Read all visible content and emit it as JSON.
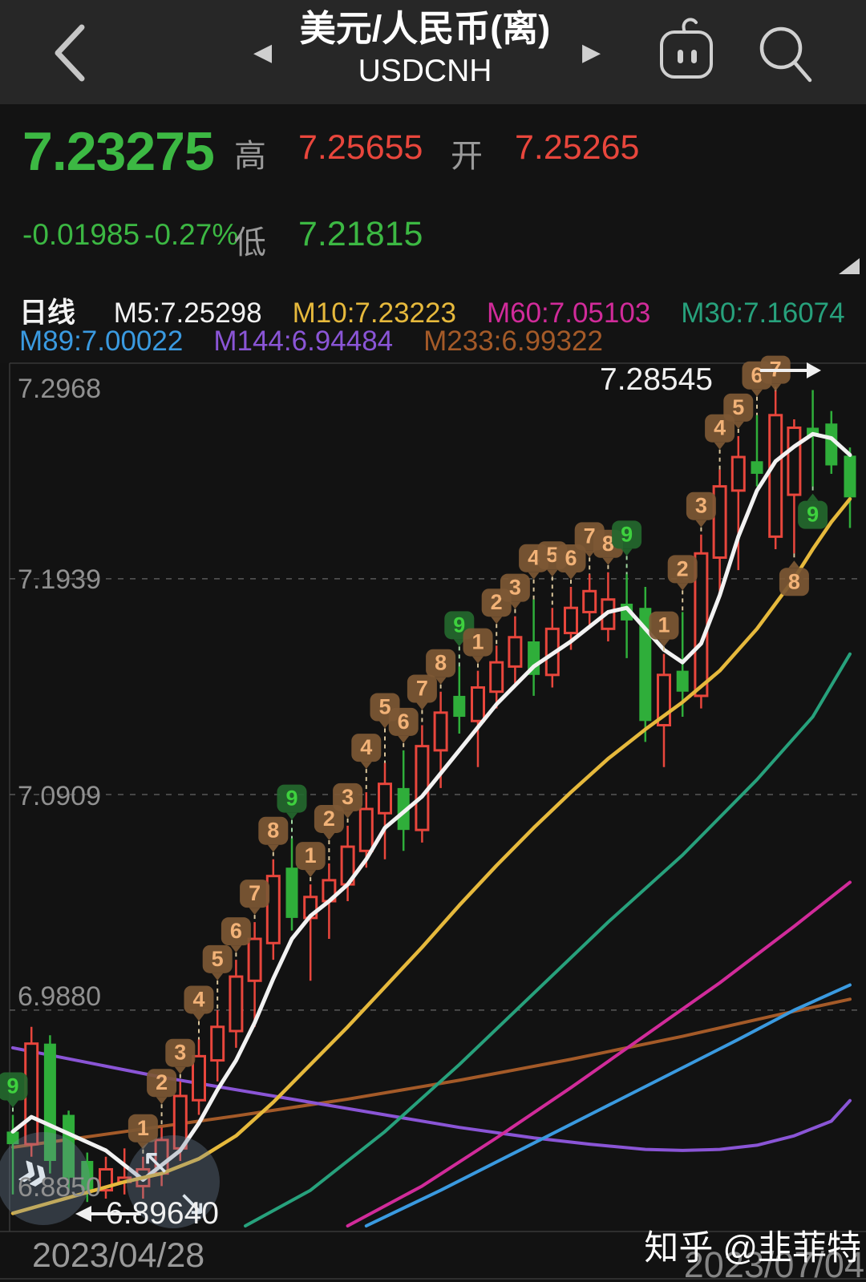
{
  "header": {
    "title": "美元/人民币(离)",
    "subtitle": "USDCNH"
  },
  "quote": {
    "last": "7.23275",
    "change": "-0.01985",
    "change_pct": "-0.27%",
    "high_label": "高",
    "high": "7.25655",
    "open_label": "开",
    "open": "7.25265",
    "low_label": "低",
    "low": "7.21815"
  },
  "legend": {
    "period": "日线",
    "rows": [
      [
        {
          "t": "M5:7.25298",
          "c": "#f2f2f2"
        },
        {
          "t": "M10:7.23223",
          "c": "#e6b93c"
        },
        {
          "t": "M60:7.05103",
          "c": "#d12b9a"
        },
        {
          "t": "M30:7.16074",
          "c": "#27a17c"
        }
      ],
      [
        {
          "t": "M89:7.00022",
          "c": "#3a9ae0"
        },
        {
          "t": "M144:6.94484",
          "c": "#8a55d6"
        },
        {
          "t": "M233:6.99322",
          "c": "#a45a28"
        }
      ]
    ]
  },
  "footer": {
    "date_left": "2023/04/28",
    "date_right": "2023/07/04",
    "watermark": "知乎 @韭菲特"
  },
  "chart_data": {
    "type": "candlestick",
    "symbol": "USDCNH",
    "period": "daily",
    "title": "USDCNH 日线",
    "y_ticks": [
      "7.2968",
      "7.1939",
      "7.0909",
      "6.9880",
      "6.8850"
    ],
    "x_range": [
      "2023/04/28",
      "2023/07/04"
    ],
    "high_annotation": "7.28545",
    "low_annotation": "6.89640",
    "up_color": "#e8463c",
    "down_color": "#2fae3a",
    "grid": "dashed-horizontal",
    "candles": [
      [
        6.93,
        6.938,
        6.9,
        6.924,
        "9",
        "green",
        0
      ],
      [
        6.924,
        6.98,
        6.918,
        6.972
      ],
      [
        6.972,
        6.976,
        6.91,
        6.916
      ],
      [
        6.938,
        6.94,
        6.902,
        6.908
      ],
      [
        6.916,
        6.92,
        6.8964,
        6.902
      ],
      [
        6.902,
        6.918,
        6.898,
        6.912
      ],
      [
        6.906,
        6.922,
        6.9,
        6.908
      ],
      [
        6.904,
        6.918,
        6.898,
        6.912,
        "1",
        "brown",
        0
      ],
      [
        6.91,
        6.932,
        6.904,
        6.926,
        "2",
        "brown",
        20
      ],
      [
        6.922,
        6.954,
        6.916,
        6.947,
        "3",
        "brown",
        0
      ],
      [
        6.945,
        6.974,
        6.938,
        6.966,
        "4",
        "brown",
        14
      ],
      [
        6.964,
        6.988,
        6.954,
        6.98,
        "5",
        "brown",
        28
      ],
      [
        6.978,
        7.012,
        6.97,
        7.004,
        "6",
        "brown",
        0
      ],
      [
        7.002,
        7.03,
        6.98,
        7.022,
        "7",
        "brown",
        0
      ],
      [
        7.02,
        7.06,
        7.012,
        7.052,
        "8",
        "brown",
        0
      ],
      [
        7.056,
        7.07,
        7.026,
        7.032,
        "9",
        "green",
        14
      ],
      [
        7.032,
        7.048,
        7.002,
        7.042,
        "1",
        "brown",
        0
      ],
      [
        7.04,
        7.058,
        7.022,
        7.05,
        "2",
        "brown",
        20
      ],
      [
        7.048,
        7.076,
        7.04,
        7.066,
        "3",
        "brown",
        0
      ],
      [
        7.064,
        7.092,
        7.056,
        7.084,
        "4",
        "brown",
        20
      ],
      [
        7.082,
        7.106,
        7.06,
        7.096,
        "5",
        "brown",
        34
      ],
      [
        7.094,
        7.112,
        7.064,
        7.074,
        "6",
        "brown",
        0
      ],
      [
        7.074,
        7.124,
        7.068,
        7.114,
        "7",
        "brown",
        10
      ],
      [
        7.112,
        7.14,
        7.094,
        7.13,
        "8",
        "brown",
        0
      ],
      [
        7.138,
        7.152,
        7.12,
        7.128,
        "9",
        "green",
        16
      ],
      [
        7.126,
        7.15,
        7.104,
        7.142,
        "1",
        "brown",
        0
      ],
      [
        7.14,
        7.162,
        7.132,
        7.154,
        "2",
        "brown",
        18
      ],
      [
        7.152,
        7.176,
        7.144,
        7.166,
        "3",
        "brown",
        0
      ],
      [
        7.164,
        7.184,
        7.138,
        7.148,
        "4",
        "brown",
        16
      ],
      [
        7.148,
        7.18,
        7.142,
        7.17,
        "5",
        "brown",
        30
      ],
      [
        7.168,
        7.19,
        7.16,
        7.18,
        "6",
        "brown",
        0
      ],
      [
        7.178,
        7.196,
        7.172,
        7.188,
        "7",
        "brown",
        12
      ],
      [
        7.17,
        7.197,
        7.164,
        7.184,
        "8",
        "brown",
        0
      ],
      [
        7.182,
        7.196,
        7.156,
        7.174,
        "9",
        "green",
        14
      ],
      [
        7.18,
        7.19,
        7.116,
        7.126
      ],
      [
        7.124,
        7.158,
        7.104,
        7.148,
        "1",
        "brown",
        0
      ],
      [
        7.15,
        7.178,
        7.128,
        7.14,
        "2",
        "brown",
        18
      ],
      [
        7.138,
        7.215,
        7.132,
        7.206,
        "3",
        "brown",
        0
      ],
      [
        7.204,
        7.246,
        7.186,
        7.238,
        "4",
        "brown",
        16
      ],
      [
        7.236,
        7.262,
        7.198,
        7.252,
        "5",
        "brown",
        0
      ],
      [
        7.25,
        7.272,
        7.238,
        7.244,
        "6",
        "brown",
        14
      ],
      [
        7.214,
        7.28545,
        7.208,
        7.272,
        "7",
        "brown",
        -14
      ],
      [
        7.234,
        7.27,
        7.206,
        7.266,
        "8",
        "brown-below",
        0
      ],
      [
        7.266,
        7.284,
        7.238,
        7.262,
        "9",
        "green-below",
        0
      ],
      [
        7.268,
        7.274,
        7.244,
        7.248
      ],
      [
        7.25265,
        7.25655,
        7.21815,
        7.23275
      ]
    ],
    "ma_lines": [
      {
        "name": "M233",
        "color": "#a45a28",
        "width": 4,
        "points": [
          [
            0,
            6.9225
          ],
          [
            6,
            6.93
          ],
          [
            12,
            6.9375
          ],
          [
            18,
            6.9455
          ],
          [
            24,
            6.9545
          ],
          [
            30,
            6.9645
          ],
          [
            36,
            6.9755
          ],
          [
            41,
            6.9855
          ],
          [
            45,
            6.9932
          ]
        ]
      },
      {
        "name": "M144",
        "color": "#8a55d6",
        "width": 4,
        "points": [
          [
            0,
            6.97
          ],
          [
            4,
            6.963
          ],
          [
            8,
            6.956
          ],
          [
            12,
            6.95
          ],
          [
            16,
            6.944
          ],
          [
            20,
            6.938
          ],
          [
            24,
            6.932
          ],
          [
            28,
            6.927
          ],
          [
            31,
            6.924
          ],
          [
            34,
            6.9215
          ],
          [
            36,
            6.921
          ],
          [
            38,
            6.9215
          ],
          [
            40,
            6.9235
          ],
          [
            42,
            6.928
          ],
          [
            44,
            6.935
          ],
          [
            45,
            6.9448
          ]
        ]
      },
      {
        "name": "M30",
        "color": "#27a17c",
        "width": 4,
        "points": [
          [
            12.5,
            6.885
          ],
          [
            16,
            6.902
          ],
          [
            20,
            6.93
          ],
          [
            24,
            6.962
          ],
          [
            28,
            6.996
          ],
          [
            32,
            7.03
          ],
          [
            36,
            7.062
          ],
          [
            40,
            7.098
          ],
          [
            43,
            7.128
          ],
          [
            45,
            7.158
          ]
        ]
      },
      {
        "name": "M60",
        "color": "#d12b9a",
        "width": 4,
        "points": [
          [
            18,
            6.885
          ],
          [
            22,
            6.904
          ],
          [
            26,
            6.927
          ],
          [
            30,
            6.951
          ],
          [
            34,
            6.976
          ],
          [
            38,
            7.001
          ],
          [
            42,
            7.028
          ],
          [
            45,
            7.049
          ]
        ]
      },
      {
        "name": "M89",
        "color": "#3a9ae0",
        "width": 4,
        "points": [
          [
            19,
            6.885
          ],
          [
            23,
            6.902
          ],
          [
            27,
            6.92
          ],
          [
            31,
            6.938
          ],
          [
            35,
            6.956
          ],
          [
            39,
            6.974
          ],
          [
            42,
            6.988
          ],
          [
            45,
            7.0
          ]
        ]
      },
      {
        "name": "M5",
        "color": "#f2f2f2",
        "width": 5,
        "points": [
          [
            0,
            6.93
          ],
          [
            1,
            6.937
          ],
          [
            3,
            6.929
          ],
          [
            5,
            6.921
          ],
          [
            7,
            6.907
          ],
          [
            9,
            6.921
          ],
          [
            10,
            6.934
          ],
          [
            11,
            6.95
          ],
          [
            12,
            6.964
          ],
          [
            13,
            6.982
          ],
          [
            14,
            7.003
          ],
          [
            15,
            7.022
          ],
          [
            16,
            7.033
          ],
          [
            17,
            7.04
          ],
          [
            18,
            7.048
          ],
          [
            19,
            7.06
          ],
          [
            20,
            7.075
          ],
          [
            22,
            7.09
          ],
          [
            24,
            7.112
          ],
          [
            26,
            7.134
          ],
          [
            28,
            7.152
          ],
          [
            30,
            7.164
          ],
          [
            32,
            7.178
          ],
          [
            33,
            7.18
          ],
          [
            34,
            7.17
          ],
          [
            35,
            7.16
          ],
          [
            36,
            7.154
          ],
          [
            37,
            7.163
          ],
          [
            38,
            7.186
          ],
          [
            39,
            7.214
          ],
          [
            40,
            7.236
          ],
          [
            41,
            7.25
          ],
          [
            42,
            7.257
          ],
          [
            43,
            7.263
          ],
          [
            44,
            7.261
          ],
          [
            45,
            7.253
          ]
        ]
      },
      {
        "name": "M10",
        "color": "#e6b93c",
        "width": 4.5,
        "points": [
          [
            0,
            6.891
          ],
          [
            2,
            6.896
          ],
          [
            4,
            6.901
          ],
          [
            6,
            6.906
          ],
          [
            8,
            6.91
          ],
          [
            10,
            6.917
          ],
          [
            12,
            6.928
          ],
          [
            14,
            6.944
          ],
          [
            16,
            6.962
          ],
          [
            18,
            6.98
          ],
          [
            20,
            6.999
          ],
          [
            22,
            7.018
          ],
          [
            24,
            7.038
          ],
          [
            26,
            7.057
          ],
          [
            28,
            7.075
          ],
          [
            30,
            7.092
          ],
          [
            32,
            7.108
          ],
          [
            34,
            7.122
          ],
          [
            36,
            7.135
          ],
          [
            38,
            7.15
          ],
          [
            40,
            7.17
          ],
          [
            42,
            7.194
          ],
          [
            43,
            7.208
          ],
          [
            44,
            7.221
          ],
          [
            45,
            7.232
          ]
        ]
      }
    ],
    "badge_colors": {
      "brown_bg": "rgba(125,88,52,0.92)",
      "brown_text": "#f2b277",
      "green_bg": "rgba(36,104,46,0.92)",
      "green_text": "#3ed13e"
    }
  }
}
